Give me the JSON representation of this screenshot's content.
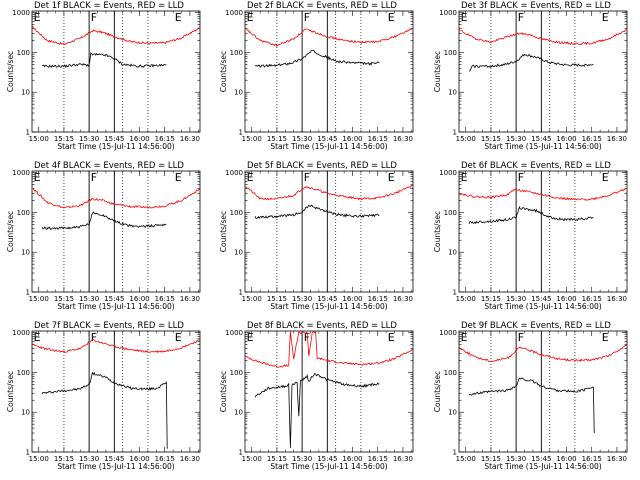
{
  "chart_data": {
    "type": "line",
    "panel_titles": [
      "Det 1f BLACK = Events, RED = LLD",
      "Det 2f BLACK = Events, RED = LLD",
      "Det 3f BLACK = Events, RED = LLD",
      "Det 4f BLACK = Events, RED = LLD",
      "Det 5f BLACK = Events, RED = LLD",
      "Det 6f BLACK = Events, RED = LLD",
      "Det 7f BLACK = Events, RED = LLD",
      "Det 8f BLACK = Events, RED = LLD",
      "Det 9f BLACK = Events, RED = LLD"
    ],
    "xlabel": "Start Time (15-Jul-11 14:56:00)",
    "ylabel": "Counts/sec",
    "x_tick_labels": [
      "15:00",
      "15:15",
      "15:30",
      "15:45",
      "16:00",
      "16:15",
      "16:30"
    ],
    "y_tick_labels": [
      "1",
      "10",
      "100",
      "1000"
    ],
    "y_scale": "log",
    "ylim": [
      1,
      1100
    ],
    "x_range_minutes": [
      -4,
      96
    ],
    "dotted_lines_minutes": [
      15,
      50,
      65
    ],
    "solid_lines_minutes": [
      30,
      45
    ],
    "marker_labels": [
      "E",
      "F",
      "E"
    ],
    "marker_minutes": [
      -3,
      31,
      81
    ],
    "series_colors": {
      "events": "#000000",
      "lld": "#ff0000"
    },
    "series_names": [
      "BLACK = Events",
      "RED = LLD"
    ],
    "panels": [
      {
        "lld": [
          {
            "x": -4,
            "y": 450
          },
          {
            "x": 5,
            "y": 200
          },
          {
            "x": 15,
            "y": 160
          },
          {
            "x": 25,
            "y": 230
          },
          {
            "x": 32,
            "y": 350
          },
          {
            "x": 38,
            "y": 320
          },
          {
            "x": 45,
            "y": 250
          },
          {
            "x": 55,
            "y": 185
          },
          {
            "x": 65,
            "y": 170
          },
          {
            "x": 75,
            "y": 175
          },
          {
            "x": 85,
            "y": 230
          },
          {
            "x": 96,
            "y": 420
          }
        ],
        "events": [
          {
            "x": 2,
            "y": 45
          },
          {
            "x": 15,
            "y": 45
          },
          {
            "x": 24,
            "y": 50
          },
          {
            "x": 30,
            "y": 48
          },
          {
            "x": 31,
            "y": 90
          },
          {
            "x": 40,
            "y": 85
          },
          {
            "x": 45,
            "y": 70
          },
          {
            "x": 50,
            "y": 50
          },
          {
            "x": 60,
            "y": 45
          },
          {
            "x": 70,
            "y": 47
          },
          {
            "x": 76,
            "y": 48
          }
        ]
      },
      {
        "lld": [
          {
            "x": -4,
            "y": 400
          },
          {
            "x": 5,
            "y": 200
          },
          {
            "x": 15,
            "y": 150
          },
          {
            "x": 25,
            "y": 220
          },
          {
            "x": 32,
            "y": 380
          },
          {
            "x": 38,
            "y": 320
          },
          {
            "x": 45,
            "y": 250
          },
          {
            "x": 55,
            "y": 200
          },
          {
            "x": 65,
            "y": 180
          },
          {
            "x": 75,
            "y": 185
          },
          {
            "x": 85,
            "y": 250
          },
          {
            "x": 96,
            "y": 400
          }
        ],
        "events": [
          {
            "x": 2,
            "y": 45
          },
          {
            "x": 15,
            "y": 47
          },
          {
            "x": 24,
            "y": 55
          },
          {
            "x": 30,
            "y": 70
          },
          {
            "x": 36,
            "y": 110
          },
          {
            "x": 42,
            "y": 85
          },
          {
            "x": 50,
            "y": 60
          },
          {
            "x": 60,
            "y": 55
          },
          {
            "x": 70,
            "y": 52
          },
          {
            "x": 76,
            "y": 55
          }
        ]
      },
      {
        "lld": [
          {
            "x": -4,
            "y": 370
          },
          {
            "x": 5,
            "y": 230
          },
          {
            "x": 15,
            "y": 180
          },
          {
            "x": 25,
            "y": 250
          },
          {
            "x": 32,
            "y": 300
          },
          {
            "x": 38,
            "y": 280
          },
          {
            "x": 45,
            "y": 220
          },
          {
            "x": 55,
            "y": 180
          },
          {
            "x": 65,
            "y": 165
          },
          {
            "x": 75,
            "y": 170
          },
          {
            "x": 85,
            "y": 220
          },
          {
            "x": 96,
            "y": 370
          }
        ],
        "events": [
          {
            "x": 2,
            "y": 32
          },
          {
            "x": 4,
            "y": 45
          },
          {
            "x": 15,
            "y": 45
          },
          {
            "x": 24,
            "y": 50
          },
          {
            "x": 30,
            "y": 60
          },
          {
            "x": 35,
            "y": 90
          },
          {
            "x": 42,
            "y": 75
          },
          {
            "x": 50,
            "y": 55
          },
          {
            "x": 60,
            "y": 48
          },
          {
            "x": 70,
            "y": 48
          },
          {
            "x": 76,
            "y": 50
          }
        ]
      },
      {
        "lld": [
          {
            "x": -4,
            "y": 420
          },
          {
            "x": 5,
            "y": 180
          },
          {
            "x": 15,
            "y": 130
          },
          {
            "x": 25,
            "y": 150
          },
          {
            "x": 32,
            "y": 220
          },
          {
            "x": 38,
            "y": 200
          },
          {
            "x": 45,
            "y": 160
          },
          {
            "x": 55,
            "y": 140
          },
          {
            "x": 65,
            "y": 135
          },
          {
            "x": 75,
            "y": 145
          },
          {
            "x": 85,
            "y": 200
          },
          {
            "x": 96,
            "y": 390
          }
        ],
        "events": [
          {
            "x": 2,
            "y": 40
          },
          {
            "x": 15,
            "y": 40
          },
          {
            "x": 24,
            "y": 43
          },
          {
            "x": 30,
            "y": 50
          },
          {
            "x": 32,
            "y": 100
          },
          {
            "x": 40,
            "y": 80
          },
          {
            "x": 45,
            "y": 60
          },
          {
            "x": 55,
            "y": 45
          },
          {
            "x": 65,
            "y": 45
          },
          {
            "x": 70,
            "y": 48
          },
          {
            "x": 76,
            "y": 50
          }
        ]
      },
      {
        "lld": [
          {
            "x": -4,
            "y": 470
          },
          {
            "x": 5,
            "y": 220
          },
          {
            "x": 15,
            "y": 220
          },
          {
            "x": 25,
            "y": 270
          },
          {
            "x": 32,
            "y": 450
          },
          {
            "x": 38,
            "y": 380
          },
          {
            "x": 45,
            "y": 300
          },
          {
            "x": 55,
            "y": 250
          },
          {
            "x": 65,
            "y": 220
          },
          {
            "x": 75,
            "y": 230
          },
          {
            "x": 85,
            "y": 300
          },
          {
            "x": 96,
            "y": 480
          }
        ],
        "events": [
          {
            "x": 2,
            "y": 75
          },
          {
            "x": 15,
            "y": 80
          },
          {
            "x": 24,
            "y": 85
          },
          {
            "x": 30,
            "y": 100
          },
          {
            "x": 34,
            "y": 150
          },
          {
            "x": 42,
            "y": 115
          },
          {
            "x": 50,
            "y": 90
          },
          {
            "x": 60,
            "y": 80
          },
          {
            "x": 70,
            "y": 82
          },
          {
            "x": 76,
            "y": 85
          }
        ]
      },
      {
        "lld": [
          {
            "x": -4,
            "y": 300
          },
          {
            "x": 5,
            "y": 250
          },
          {
            "x": 15,
            "y": 240
          },
          {
            "x": 25,
            "y": 280
          },
          {
            "x": 29,
            "y": 380
          },
          {
            "x": 34,
            "y": 350
          },
          {
            "x": 42,
            "y": 300
          },
          {
            "x": 55,
            "y": 230
          },
          {
            "x": 65,
            "y": 210
          },
          {
            "x": 75,
            "y": 215
          },
          {
            "x": 85,
            "y": 270
          },
          {
            "x": 96,
            "y": 400
          }
        ],
        "events": [
          {
            "x": 2,
            "y": 55
          },
          {
            "x": 15,
            "y": 60
          },
          {
            "x": 24,
            "y": 65
          },
          {
            "x": 30,
            "y": 75
          },
          {
            "x": 32,
            "y": 130
          },
          {
            "x": 42,
            "y": 110
          },
          {
            "x": 50,
            "y": 75
          },
          {
            "x": 60,
            "y": 65
          },
          {
            "x": 70,
            "y": 68
          },
          {
            "x": 76,
            "y": 75
          }
        ]
      },
      {
        "lld": [
          {
            "x": -4,
            "y": 500
          },
          {
            "x": 5,
            "y": 380
          },
          {
            "x": 15,
            "y": 330
          },
          {
            "x": 25,
            "y": 400
          },
          {
            "x": 32,
            "y": 650
          },
          {
            "x": 38,
            "y": 550
          },
          {
            "x": 45,
            "y": 450
          },
          {
            "x": 55,
            "y": 370
          },
          {
            "x": 65,
            "y": 330
          },
          {
            "x": 75,
            "y": 340
          },
          {
            "x": 85,
            "y": 420
          },
          {
            "x": 96,
            "y": 650
          }
        ],
        "events": [
          {
            "x": 2,
            "y": 30
          },
          {
            "x": 15,
            "y": 35
          },
          {
            "x": 24,
            "y": 38
          },
          {
            "x": 30,
            "y": 50
          },
          {
            "x": 32,
            "y": 95
          },
          {
            "x": 40,
            "y": 75
          },
          {
            "x": 45,
            "y": 55
          },
          {
            "x": 55,
            "y": 40
          },
          {
            "x": 65,
            "y": 38
          },
          {
            "x": 70,
            "y": 40
          },
          {
            "x": 76,
            "y": 55
          },
          {
            "x": 76.5,
            "y": 1.2
          }
        ]
      },
      {
        "lld": [
          {
            "x": -4,
            "y": 250
          },
          {
            "x": 5,
            "y": 180
          },
          {
            "x": 15,
            "y": 140
          },
          {
            "x": 22,
            "y": 150
          },
          {
            "x": 23,
            "y": 1000
          },
          {
            "x": 25,
            "y": 220
          },
          {
            "x": 28,
            "y": 1000
          },
          {
            "x": 33,
            "y": 1000
          },
          {
            "x": 34,
            "y": 260
          },
          {
            "x": 36,
            "y": 1000
          },
          {
            "x": 38,
            "y": 1000
          },
          {
            "x": 39,
            "y": 230
          },
          {
            "x": 45,
            "y": 200
          },
          {
            "x": 55,
            "y": 170
          },
          {
            "x": 65,
            "y": 160
          },
          {
            "x": 75,
            "y": 170
          },
          {
            "x": 85,
            "y": 220
          },
          {
            "x": 96,
            "y": 380
          }
        ],
        "events": [
          {
            "x": 2,
            "y": 25
          },
          {
            "x": 10,
            "y": 40
          },
          {
            "x": 20,
            "y": 45
          },
          {
            "x": 22,
            "y": 50
          },
          {
            "x": 23,
            "y": 1.2
          },
          {
            "x": 24,
            "y": 50
          },
          {
            "x": 27,
            "y": 55
          },
          {
            "x": 28,
            "y": 8
          },
          {
            "x": 29,
            "y": 60
          },
          {
            "x": 33,
            "y": 80
          },
          {
            "x": 34,
            "y": 60
          },
          {
            "x": 37,
            "y": 90
          },
          {
            "x": 40,
            "y": 85
          },
          {
            "x": 45,
            "y": 65
          },
          {
            "x": 55,
            "y": 50
          },
          {
            "x": 65,
            "y": 45
          },
          {
            "x": 70,
            "y": 48
          },
          {
            "x": 76,
            "y": 52
          }
        ]
      },
      {
        "lld": [
          {
            "x": -4,
            "y": 420
          },
          {
            "x": 5,
            "y": 250
          },
          {
            "x": 15,
            "y": 190
          },
          {
            "x": 25,
            "y": 230
          },
          {
            "x": 32,
            "y": 420
          },
          {
            "x": 38,
            "y": 360
          },
          {
            "x": 45,
            "y": 280
          },
          {
            "x": 55,
            "y": 220
          },
          {
            "x": 65,
            "y": 200
          },
          {
            "x": 75,
            "y": 205
          },
          {
            "x": 85,
            "y": 260
          },
          {
            "x": 96,
            "y": 480
          }
        ],
        "events": [
          {
            "x": 2,
            "y": 28
          },
          {
            "x": 15,
            "y": 33
          },
          {
            "x": 24,
            "y": 35
          },
          {
            "x": 30,
            "y": 45
          },
          {
            "x": 32,
            "y": 70
          },
          {
            "x": 40,
            "y": 60
          },
          {
            "x": 45,
            "y": 45
          },
          {
            "x": 55,
            "y": 35
          },
          {
            "x": 65,
            "y": 33
          },
          {
            "x": 70,
            "y": 36
          },
          {
            "x": 76,
            "y": 45
          },
          {
            "x": 76.5,
            "y": 3
          }
        ]
      }
    ]
  }
}
